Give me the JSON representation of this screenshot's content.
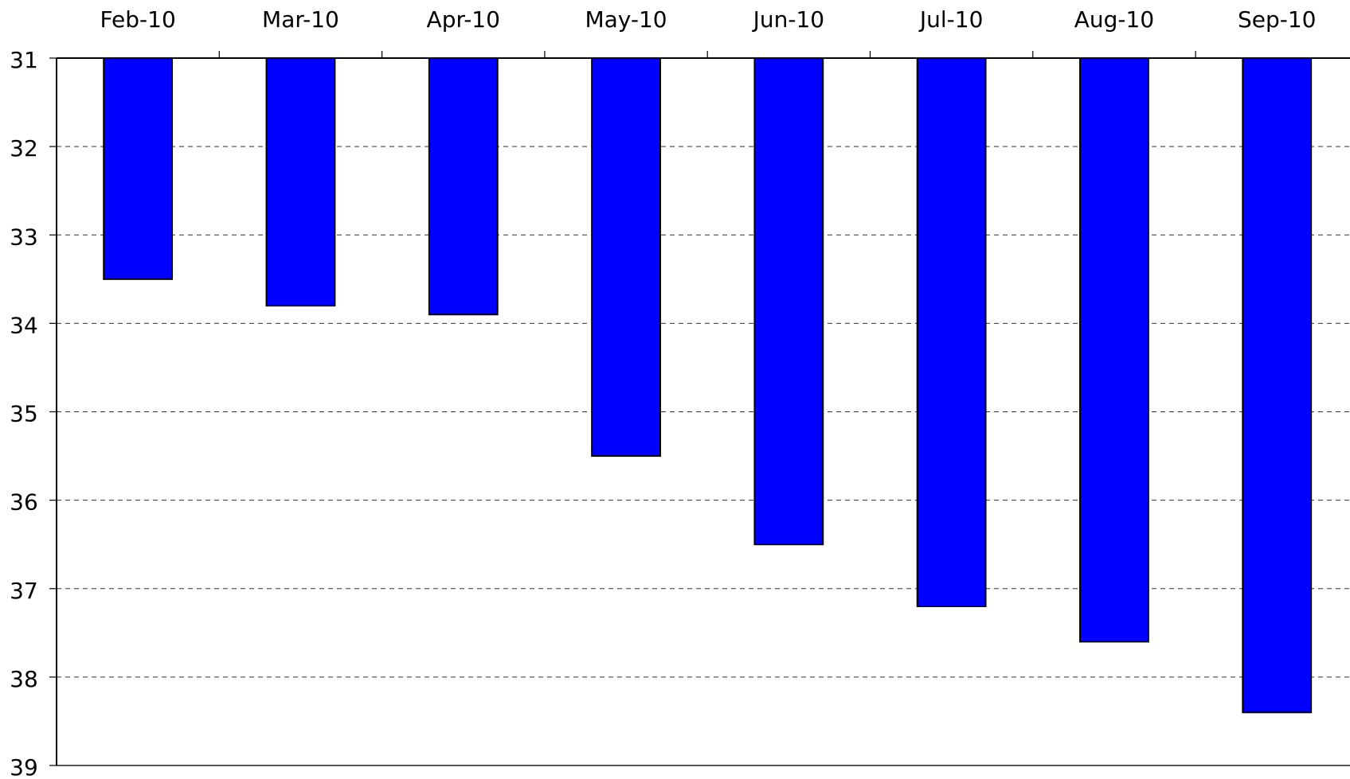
{
  "chart_data": {
    "type": "bar",
    "categories": [
      "Feb-10",
      "Mar-10",
      "Apr-10",
      "May-10",
      "Jun-10",
      "Jul-10",
      "Aug-10",
      "Sep-10"
    ],
    "values": [
      33.5,
      33.8,
      33.9,
      35.5,
      36.5,
      37.2,
      37.6,
      38.4
    ],
    "color": "#0000ff",
    "ylim": [
      31,
      39
    ],
    "yticks": [
      31,
      32,
      33,
      34,
      35,
      36,
      37,
      38,
      39
    ],
    "y_inverted": true,
    "x_axis_position": "top",
    "grid": true
  }
}
